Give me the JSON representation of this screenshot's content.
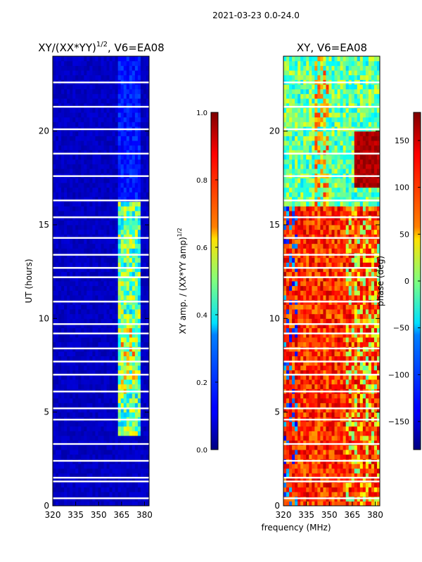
{
  "figure": {
    "suptitle": "2021-03-23 0.0-24.0",
    "xlabel_shared": "frequency (MHz)"
  },
  "chart_data": [
    {
      "type": "heatmap",
      "title_main": "XY/(XX*YY)",
      "title_sup": "1/2",
      "title_tail": ", V6=EA08",
      "xlabel": "frequency (MHz)",
      "ylabel": "UT (hours)",
      "xlim": [
        320,
        383
      ],
      "ylim": [
        0,
        24
      ],
      "xticks": [
        320,
        335,
        350,
        365,
        380
      ],
      "yticks": [
        0,
        5,
        10,
        15,
        20
      ],
      "colormap": "jet",
      "colorbar": {
        "label_main": "XY amp. / (XX*YY amp)",
        "label_sup": "1/2",
        "range": [
          0.0,
          1.0
        ],
        "ticks": [
          0.0,
          0.2,
          0.4,
          0.6,
          0.8,
          1.0
        ],
        "tick_labels": [
          "0.0",
          "0.2",
          "0.4",
          "0.6",
          "0.8",
          "1.0"
        ]
      },
      "data_gaps_ut": [
        0.4,
        1.3,
        1.5,
        2.4,
        3.3,
        4.6,
        5.2,
        6.1,
        7.0,
        7.7,
        8.4,
        9.2,
        9.7,
        10.9,
        12.2,
        12.7,
        13.4,
        14.3,
        15.4,
        16.3,
        17.6,
        18.8,
        20.1,
        21.3,
        22.6
      ],
      "description": "Low amplitude (~0.0-0.1) across 320-362 MHz; elevated amplitude (~0.3-0.8) in band 362-377 MHz for UT 4-16 h"
    },
    {
      "type": "heatmap",
      "title": "XY, V6=EA08",
      "xlabel": "frequency (MHz)",
      "ylabel": "",
      "xlim": [
        320,
        383
      ],
      "ylim": [
        0,
        24
      ],
      "xticks": [
        320,
        335,
        350,
        365,
        380
      ],
      "yticks": [
        0,
        5,
        10,
        15,
        20
      ],
      "colormap": "jet",
      "colorbar": {
        "label": "phase (deg)",
        "range": [
          -180,
          180
        ],
        "ticks": [
          -150,
          -100,
          -50,
          0,
          50,
          100,
          150
        ],
        "tick_labels": [
          "−150",
          "−100",
          "−50",
          "0",
          "50",
          "100",
          "150"
        ]
      },
      "data_gaps_ut": [
        0.4,
        1.3,
        1.5,
        2.4,
        3.3,
        4.6,
        5.2,
        6.1,
        7.0,
        7.7,
        8.4,
        9.2,
        9.7,
        10.9,
        12.2,
        12.7,
        13.4,
        14.3,
        15.4,
        16.3,
        17.6,
        18.8,
        20.1,
        21.3,
        22.6
      ],
      "description": "Phase ~100-150 deg (orange/red) for UT 0-16 h; phase ~-50 to 0 deg (cyan/yellow mix) for UT 16-24 h; dark red region near 365-383 MHz UT 17-20 h"
    }
  ]
}
